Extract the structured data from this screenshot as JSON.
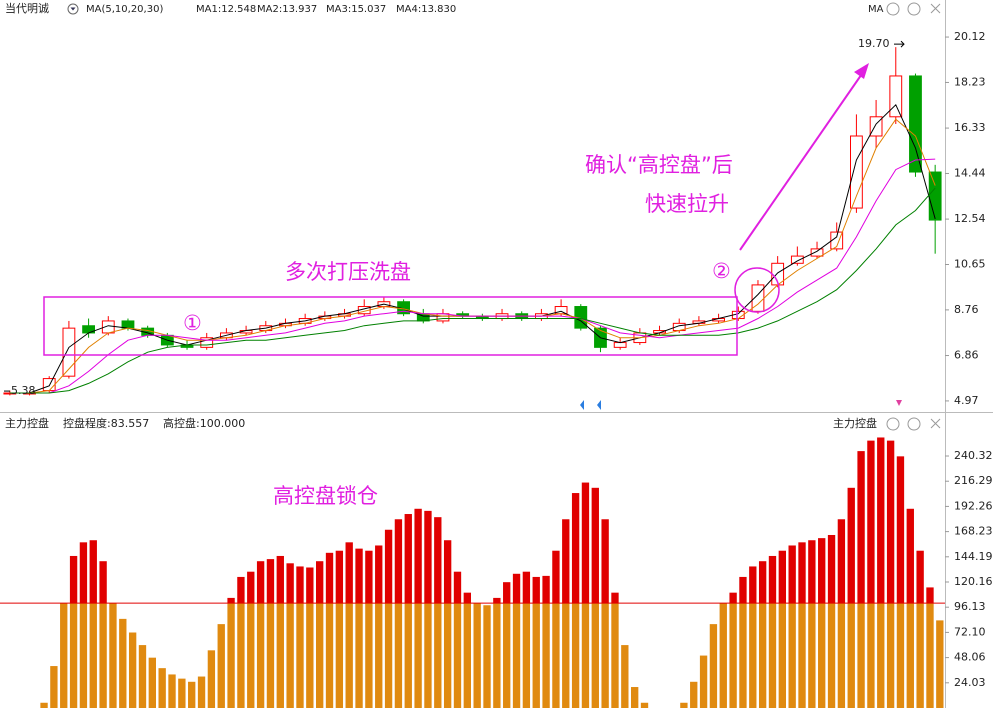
{
  "chart_data": [
    {
      "type": "candlestick",
      "title": "当代明诚",
      "indicator": "MA(5,10,20,30)",
      "open": [
        5.3,
        5.3,
        5.4,
        6.0,
        8.1,
        7.8,
        8.3,
        8.0,
        7.7,
        7.3,
        7.2,
        7.6,
        7.8,
        7.9,
        8.1,
        8.2,
        8.4,
        8.5,
        8.6,
        8.9,
        9.1,
        8.6,
        8.3,
        8.6,
        8.5,
        8.4,
        8.6,
        8.4,
        8.6,
        8.9,
        8.0,
        7.2,
        7.4,
        7.8,
        7.9,
        8.2,
        8.3,
        8.4,
        8.7,
        9.8,
        10.7,
        11.0,
        11.3,
        13.0,
        16.0,
        16.8,
        18.5,
        14.5
      ],
      "high": [
        5.4,
        5.4,
        6.0,
        8.3,
        8.4,
        8.5,
        8.4,
        8.1,
        7.8,
        7.5,
        7.8,
        8.0,
        8.1,
        8.3,
        8.4,
        8.6,
        8.7,
        8.8,
        9.2,
        9.3,
        9.2,
        8.8,
        8.8,
        8.7,
        8.6,
        8.8,
        8.7,
        8.8,
        9.2,
        9.0,
        8.1,
        7.6,
        8.0,
        8.1,
        8.4,
        8.5,
        8.6,
        8.9,
        10.0,
        11.0,
        11.4,
        11.6,
        12.4,
        16.9,
        17.5,
        19.7,
        18.6,
        14.8
      ],
      "low": [
        5.2,
        5.2,
        5.3,
        5.9,
        7.6,
        7.7,
        7.9,
        7.6,
        7.2,
        7.1,
        7.1,
        7.5,
        7.7,
        7.8,
        8.0,
        8.1,
        8.3,
        8.4,
        8.5,
        8.8,
        8.5,
        8.2,
        8.2,
        8.4,
        8.3,
        8.3,
        8.3,
        8.3,
        8.5,
        7.9,
        7.0,
        7.1,
        7.3,
        7.7,
        7.8,
        8.1,
        8.2,
        8.3,
        8.6,
        9.7,
        10.6,
        10.9,
        11.2,
        12.8,
        15.5,
        16.5,
        14.3,
        11.1
      ],
      "close": [
        5.3,
        5.3,
        5.9,
        8.0,
        7.8,
        8.3,
        8.0,
        7.7,
        7.3,
        7.2,
        7.6,
        7.8,
        7.9,
        8.1,
        8.2,
        8.4,
        8.5,
        8.6,
        8.9,
        9.1,
        8.6,
        8.3,
        8.6,
        8.5,
        8.4,
        8.6,
        8.4,
        8.6,
        8.9,
        8.0,
        7.2,
        7.4,
        7.8,
        7.9,
        8.2,
        8.3,
        8.4,
        8.7,
        9.8,
        10.7,
        11.0,
        11.3,
        12.0,
        16.0,
        16.8,
        18.5,
        14.5,
        12.5
      ],
      "up_color": "#ff0000",
      "down_color": "#00a000",
      "series": [
        {
          "name": "MA1:12.548",
          "color": "#000000",
          "values": [
            5.3,
            5.3,
            5.6,
            7.2,
            7.8,
            8.1,
            8.0,
            7.8,
            7.5,
            7.3,
            7.5,
            7.7,
            7.9,
            8.0,
            8.2,
            8.3,
            8.5,
            8.6,
            8.8,
            9.0,
            8.8,
            8.5,
            8.5,
            8.5,
            8.5,
            8.5,
            8.5,
            8.5,
            8.7,
            8.3,
            7.6,
            7.4,
            7.6,
            7.8,
            8.1,
            8.2,
            8.4,
            8.6,
            9.4,
            10.3,
            10.8,
            11.2,
            11.8,
            15.0,
            16.5,
            17.3,
            15.5,
            12.548
          ]
        },
        {
          "name": "MA2:13.937",
          "color": "#e08000",
          "values": [
            5.3,
            5.3,
            5.4,
            6.3,
            7.2,
            7.8,
            8.0,
            7.9,
            7.7,
            7.5,
            7.5,
            7.6,
            7.7,
            7.9,
            8.1,
            8.2,
            8.4,
            8.5,
            8.7,
            8.9,
            8.8,
            8.6,
            8.5,
            8.5,
            8.5,
            8.5,
            8.5,
            8.5,
            8.6,
            8.4,
            7.9,
            7.6,
            7.6,
            7.7,
            7.9,
            8.1,
            8.2,
            8.4,
            9.0,
            9.8,
            10.4,
            10.9,
            11.4,
            13.5,
            15.5,
            16.7,
            16.0,
            13.937
          ]
        },
        {
          "name": "MA3:15.037",
          "color": "#e000e0",
          "values": [
            5.3,
            5.3,
            5.3,
            5.6,
            6.2,
            6.9,
            7.5,
            7.7,
            7.7,
            7.6,
            7.5,
            7.5,
            7.6,
            7.7,
            7.8,
            8.0,
            8.2,
            8.3,
            8.5,
            8.6,
            8.7,
            8.6,
            8.6,
            8.5,
            8.5,
            8.5,
            8.5,
            8.5,
            8.5,
            8.4,
            8.1,
            7.8,
            7.7,
            7.6,
            7.7,
            7.8,
            7.9,
            8.0,
            8.4,
            8.9,
            9.5,
            10.0,
            10.5,
            11.8,
            13.3,
            14.6,
            15.0,
            15.037
          ]
        },
        {
          "name": "MA4:13.830",
          "color": "#008000",
          "values": [
            5.3,
            5.3,
            5.3,
            5.4,
            5.7,
            6.1,
            6.6,
            7.0,
            7.2,
            7.3,
            7.3,
            7.4,
            7.5,
            7.5,
            7.6,
            7.7,
            7.8,
            7.9,
            8.1,
            8.2,
            8.3,
            8.3,
            8.4,
            8.4,
            8.4,
            8.4,
            8.4,
            8.4,
            8.4,
            8.4,
            8.2,
            8.0,
            7.8,
            7.7,
            7.7,
            7.7,
            7.7,
            7.8,
            8.0,
            8.3,
            8.7,
            9.1,
            9.6,
            10.4,
            11.3,
            12.3,
            12.9,
            13.83
          ]
        }
      ],
      "high_mark": {
        "value": 19.7,
        "label": "19.70"
      },
      "low_mark": {
        "value": 5.38,
        "label": "5.38"
      },
      "ylim": [
        4.8,
        20.83
      ],
      "yticks": [
        4.97,
        6.86,
        8.76,
        10.65,
        12.54,
        14.44,
        16.33,
        18.23,
        20.12
      ],
      "annotations": [
        "确认“高控盘”后",
        "快速拉升",
        "多次打压洗盘",
        "①",
        "②"
      ]
    },
    {
      "type": "bar",
      "title": "主力控盘",
      "corner_title": "主力控盘",
      "series": [
        {
          "name": "控盘程度:83.557",
          "color": "#e08a10",
          "values": [
            0,
            0,
            0,
            0,
            5,
            40,
            100,
            145,
            158,
            160,
            140,
            100,
            85,
            72,
            60,
            48,
            38,
            32,
            28,
            25,
            30,
            55,
            80,
            105,
            125,
            130,
            140,
            142,
            145,
            138,
            135,
            134,
            140,
            148,
            150,
            158,
            152,
            150,
            155,
            170,
            180,
            185,
            190,
            188,
            182,
            160,
            130,
            110,
            100,
            98,
            105,
            120,
            128,
            130,
            125,
            126,
            150,
            180,
            205,
            215,
            210,
            180,
            110,
            60,
            20,
            5,
            0,
            0,
            0,
            5,
            25,
            50,
            80,
            100,
            110,
            125,
            135,
            140,
            145,
            150,
            155,
            158,
            160,
            162,
            165,
            180,
            210,
            245,
            255,
            258,
            255,
            240,
            190,
            150,
            115,
            83.557
          ]
        }
      ],
      "threshold": {
        "value": 100,
        "label": "高控盘:100.000",
        "color": "#e00000"
      },
      "ylim": [
        0,
        257.5
      ],
      "yticks": [
        24.03,
        48.06,
        {
          "value": 72.1,
          "label": "72.10"
        },
        96.13,
        120.16,
        144.19,
        168.23,
        192.26,
        216.29,
        240.32
      ],
      "annotations": [
        "高控盘锁仓"
      ]
    }
  ]
}
